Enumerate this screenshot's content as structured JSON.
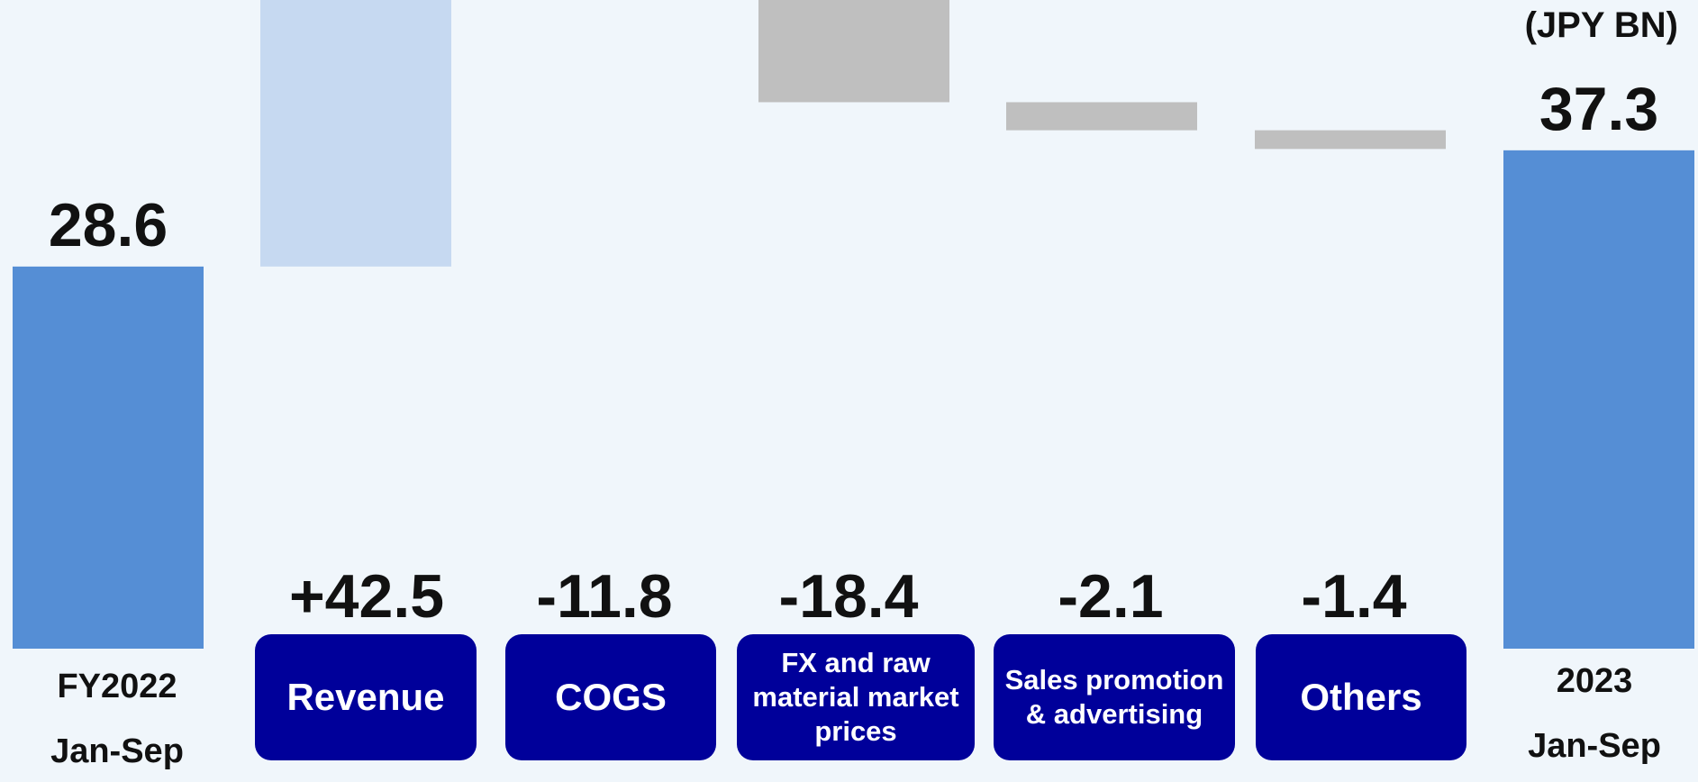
{
  "unit_label": "(JPY BN)",
  "colors": {
    "total": "#558ed5",
    "increase": "#c6d9f1",
    "decrease": "#bfbfbf",
    "category_box": "#00009a",
    "background": "#f0f6fb"
  },
  "chart_data": {
    "type": "bar",
    "subtype": "waterfall",
    "unit": "(JPY BN)",
    "start": {
      "value": 28.6,
      "label": "28.6",
      "caption_line1": "FY2022",
      "caption_line2": "Jan-Sep"
    },
    "steps": [
      {
        "category": "Revenue",
        "value": 42.5,
        "label": "+42.5"
      },
      {
        "category": "COGS",
        "value": -11.8,
        "label": "-11.8"
      },
      {
        "category": "FX and raw material market prices",
        "value": -18.4,
        "label": "-18.4"
      },
      {
        "category": "Sales promotion & advertising",
        "value": -2.1,
        "label": "-2.1"
      },
      {
        "category": "Others",
        "value": -1.4,
        "label": "-1.4"
      }
    ],
    "end": {
      "value": 37.3,
      "label": "37.3",
      "caption_line1": "2023",
      "caption_line2": "Jan-Sep"
    }
  }
}
